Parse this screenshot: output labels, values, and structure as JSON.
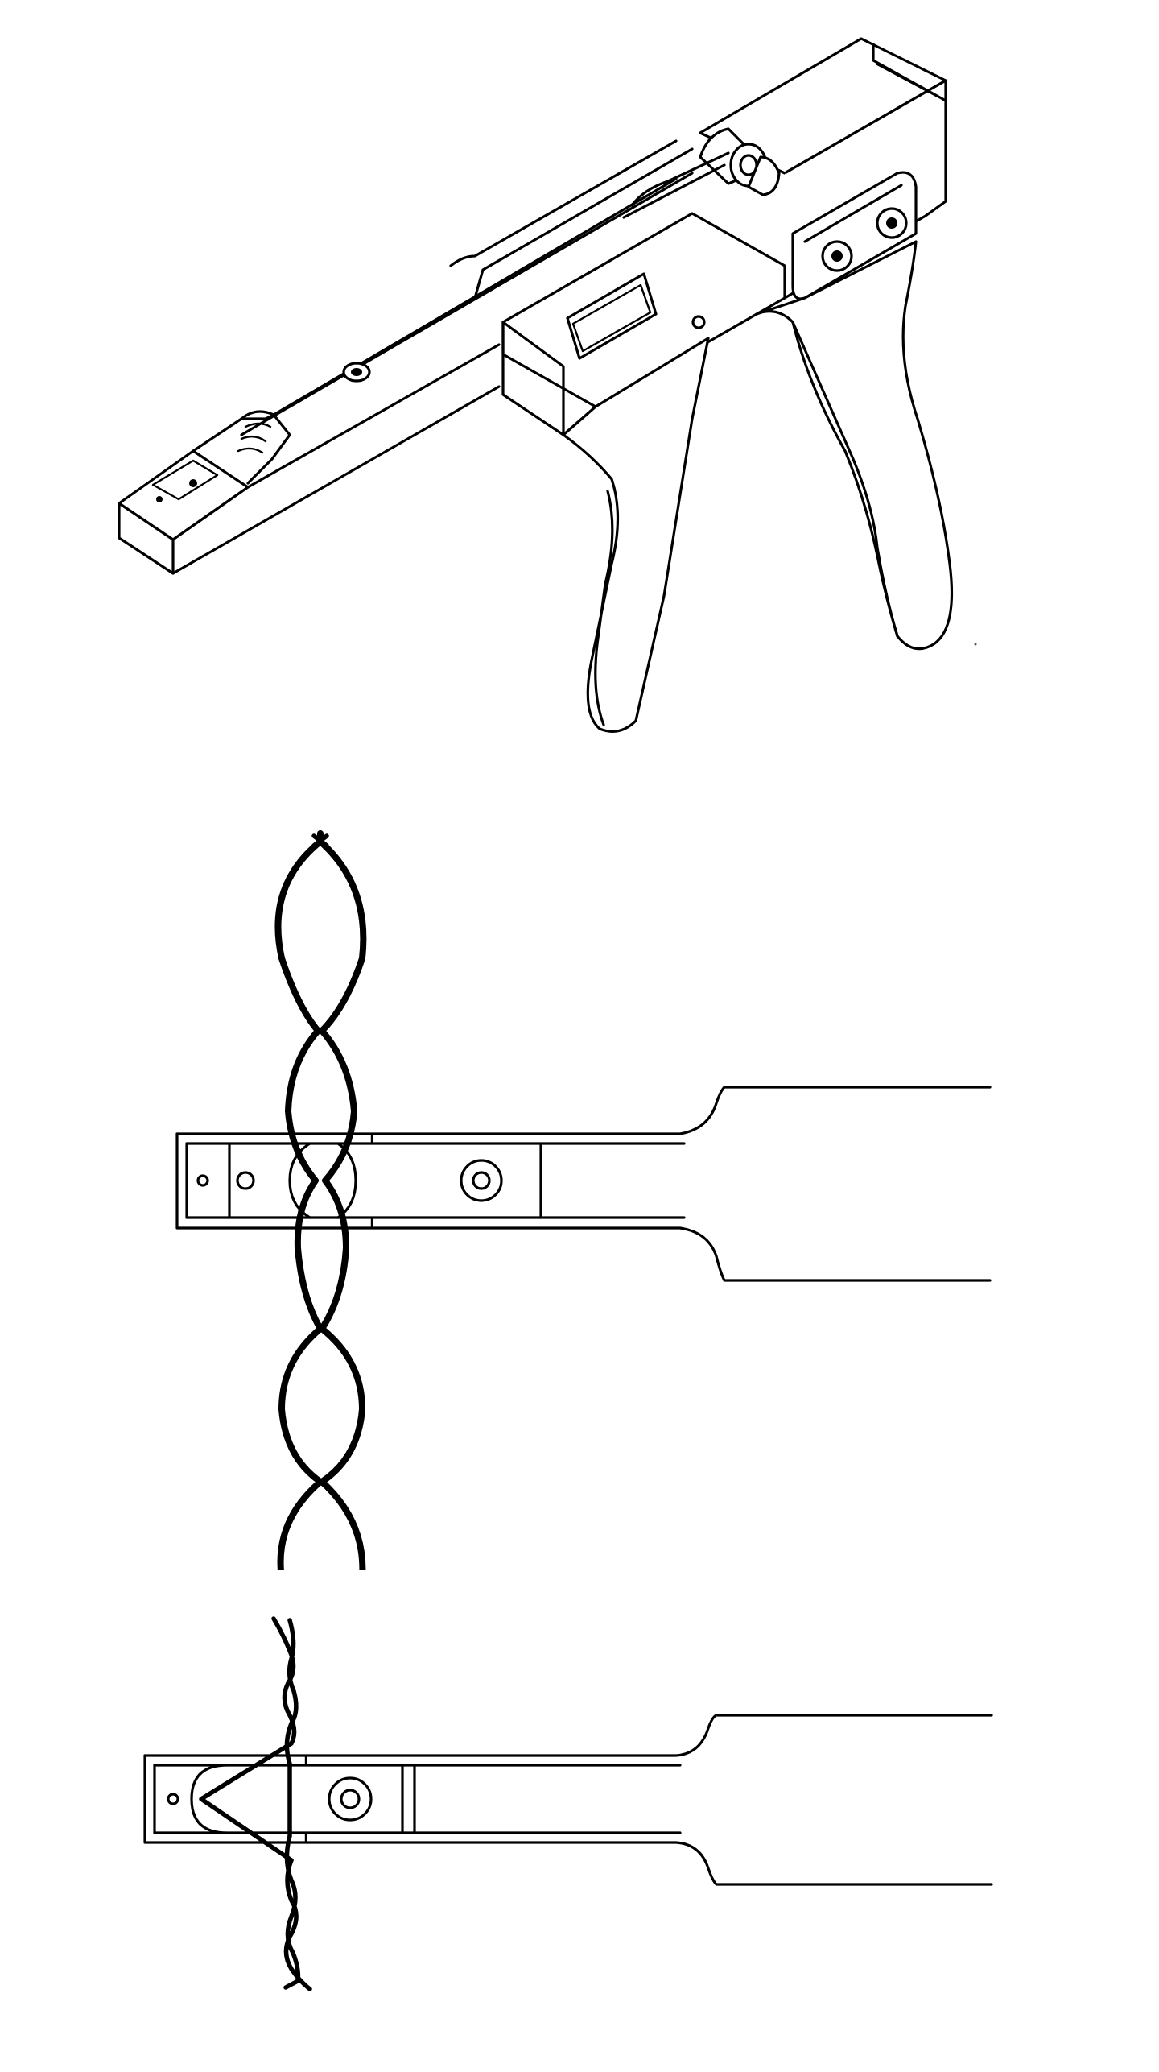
{
  "document": {
    "type": "patent-drawing-sheet",
    "background": "#ffffff",
    "ink": "#000000",
    "figures": [
      {
        "id": "perspective",
        "depicts": "wire-twisting-tool-perspective"
      },
      {
        "id": "top-view-twisted",
        "depicts": "tool-head-with-twisted-wire-loops"
      },
      {
        "id": "top-view-initial",
        "depicts": "tool-head-with-untwisted-wire"
      }
    ]
  }
}
